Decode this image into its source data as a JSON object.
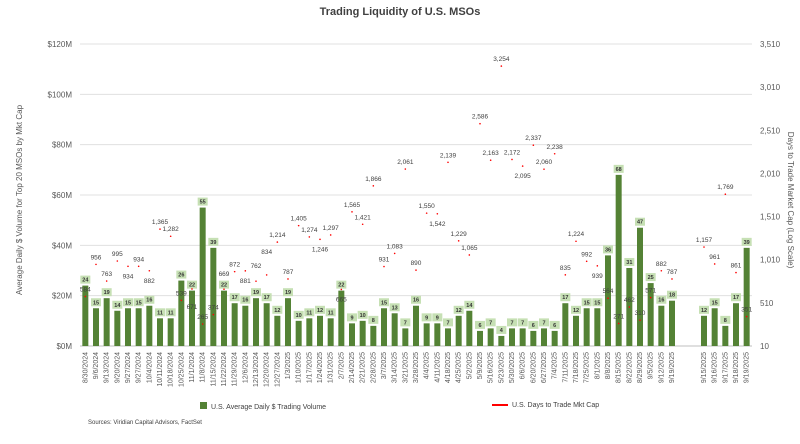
{
  "chart_data": {
    "type": "bar+line",
    "title": "Trading Liquidity of U.S. MSOs",
    "ylabel": "Average Daily $ Volume for Top 20 MSOs by Mkt Cap",
    "y2label": "Days to Trade Market Cap (Log Scale)",
    "ylim": [
      0,
      120
    ],
    "y2lim": [
      10,
      3510
    ],
    "yticks": [
      "$0M",
      "$20M",
      "$40M",
      "$60M",
      "$80M",
      "$100M",
      "$120M"
    ],
    "y2ticks": [
      "10",
      "510",
      "1,010",
      "1,510",
      "2,010",
      "2,510",
      "3,010",
      "3,510"
    ],
    "categories": [
      "8/30/2024",
      "9/6/2024",
      "9/13/2024",
      "9/20/2024",
      "9/27/2024",
      "9/27/2024",
      "10/4/2024",
      "10/11/2024",
      "10/18/2024",
      "10/25/2024",
      "11/1/2024",
      "11/8/2024",
      "11/15/2024",
      "11/22/2024",
      "11/29/2024",
      "12/6/2024",
      "12/13/2024",
      "12/20/2024",
      "12/27/2024",
      "1/3/2025",
      "1/10/2025",
      "1/17/2025",
      "1/24/2025",
      "1/31/2025",
      "2/7/2025",
      "2/14/2025",
      "2/21/2025",
      "2/28/2025",
      "3/7/2025",
      "3/14/2025",
      "3/21/2025",
      "3/28/2025",
      "4/4/2025",
      "4/11/2025",
      "4/18/2025",
      "4/25/2025",
      "5/2/2025",
      "5/9/2025",
      "5/16/2025",
      "5/23/2025",
      "5/30/2025",
      "6/6/2025",
      "6/20/2025",
      "6/27/2025",
      "7/4/2025",
      "7/11/2025",
      "7/18/2025",
      "7/25/2025",
      "8/1/2025",
      "8/8/2025",
      "8/15/2025",
      "8/22/2025",
      "8/29/2025",
      "9/5/2025",
      "9/12/2025",
      "9/19/2025",
      "",
      "",
      "9/15/2025",
      "9/16/2025",
      "9/17/2025",
      "9/18/2025",
      "9/19/2025"
    ],
    "series": [
      {
        "name": "U.S. Average Daily $ Trading Volume",
        "type": "bar",
        "color": "#548235",
        "values": [
          24,
          15,
          19,
          14,
          15,
          15,
          16,
          11,
          11,
          26,
          22,
          55,
          39,
          22,
          17,
          16,
          19,
          17,
          12,
          19,
          10,
          11,
          12,
          11,
          22,
          9,
          10,
          8,
          15,
          13,
          7,
          16,
          9,
          9,
          7,
          12,
          14,
          6,
          7,
          4,
          7,
          7,
          6,
          7,
          6,
          17,
          12,
          15,
          15,
          36,
          68,
          31,
          47,
          25,
          16,
          18,
          null,
          null,
          12,
          15,
          8,
          17,
          39
        ]
      },
      {
        "name": "U.S. Days to Trade Mkt Cap",
        "type": "line",
        "color": "#ff0000",
        "values": [
          584,
          956,
          763,
          995,
          934,
          934,
          882,
          1365,
          1282,
          539,
          671,
          265,
          374,
          669,
          872,
          881,
          762,
          834,
          1214,
          787,
          1405,
          1274,
          1246,
          1297,
          665,
          1565,
          1421,
          1866,
          931,
          1083,
          2061,
          890,
          1550,
          1542,
          2139,
          1229,
          1065,
          2586,
          2163,
          3254,
          2172,
          2095,
          2337,
          2060,
          2238,
          835,
          1224,
          992,
          939,
          564,
          271,
          462,
          310,
          571,
          882,
          787,
          null,
          null,
          1157,
          961,
          1769,
          861,
          351
        ]
      }
    ],
    "legend_position": "bottom",
    "source": "Sources: Viridian Capital Advisors, FactSet"
  }
}
